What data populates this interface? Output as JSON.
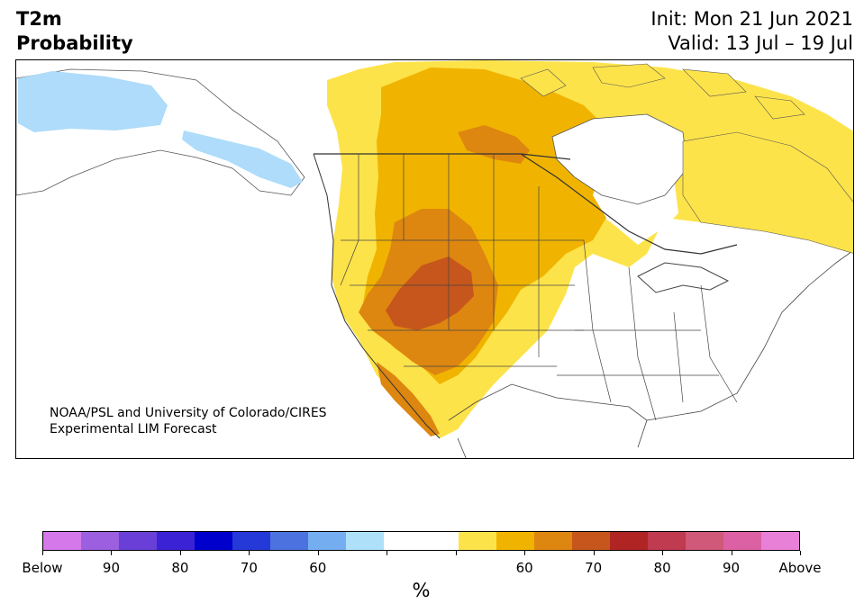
{
  "header": {
    "title_line1": "T2m",
    "title_line2": "Probability",
    "init": "Init: Mon 21 Jun 2021",
    "valid": "Valid: 13 Jul – 19 Jul"
  },
  "map": {
    "region": "North America",
    "credit_line1": "NOAA/PSL and University of Colorado/CIRES",
    "credit_line2": "Experimental LIM Forecast",
    "probability_areas": [
      {
        "category": "Above",
        "min_percent": 55
      },
      {
        "category": "Above",
        "min_percent": 60
      },
      {
        "category": "Above",
        "min_percent": 65
      },
      {
        "category": "Above",
        "min_percent": 70
      },
      {
        "category": "Below",
        "min_percent": 60
      }
    ]
  },
  "colorbar": {
    "unit": "%",
    "colors": [
      "#d478ea",
      "#9b5fe0",
      "#6a3fd8",
      "#3b22d4",
      "#0000cc",
      "#2538d8",
      "#4c72e0",
      "#74aef0",
      "#aee0fa",
      "#ffffff",
      "#ffffff",
      "#fde34a",
      "#f0b400",
      "#dd8610",
      "#c6561c",
      "#b02424",
      "#c03a50",
      "#d05878",
      "#dc60a4",
      "#e880d8"
    ],
    "tick_labels": [
      "Below",
      "90",
      "80",
      "70",
      "60",
      "",
      "",
      "60",
      "70",
      "80",
      "90",
      "Above"
    ]
  }
}
